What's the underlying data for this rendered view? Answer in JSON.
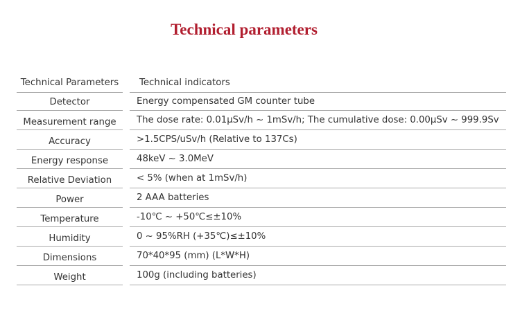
{
  "title": "Technical parameters",
  "table": {
    "headers": [
      "Technical Parameters",
      "Technical indicators"
    ],
    "rows": [
      {
        "param": "Detector",
        "value": "Energy compensated GM counter tube"
      },
      {
        "param": "Measurement range",
        "value": "The dose rate: 0.01μSv/h ~ 1mSv/h; The cumulative dose: 0.00μSv ~ 999.9Sv"
      },
      {
        "param": "Accuracy",
        "value": ">1.5CPS/uSv/h (Relative to 137Cs)"
      },
      {
        "param": "Energy response",
        "value": "48keV ~ 3.0MeV"
      },
      {
        "param": "Relative Deviation",
        "value": "< 5% (when at 1mSv/h)"
      },
      {
        "param": "Power",
        "value": "2 AAA batteries"
      },
      {
        "param": "Temperature",
        "value": "-10℃ ~ +50℃≤±10%"
      },
      {
        "param": "Humidity",
        "value": "0 ~ 95%RH (+35℃)≤±10%"
      },
      {
        "param": "Dimensions",
        "value": "70*40*95 (mm) (L*W*H)"
      },
      {
        "param": "Weight",
        "value": "100g (including batteries)"
      }
    ]
  },
  "colors": {
    "title": "#b11e2f",
    "divider": "#a8a8a8",
    "text": "#333333"
  }
}
